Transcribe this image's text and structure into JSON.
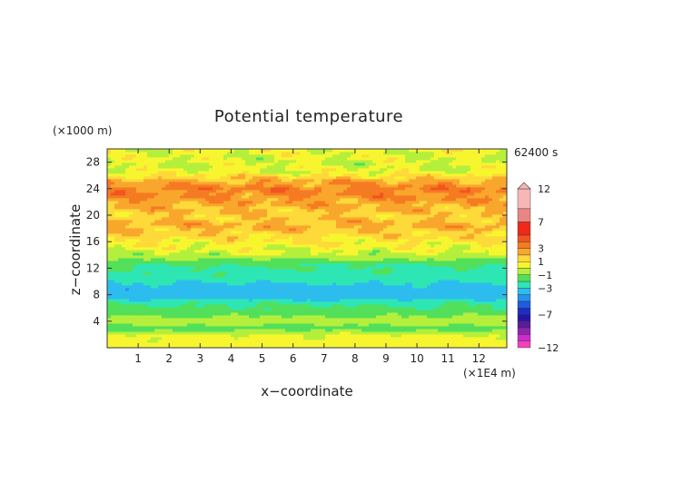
{
  "chart_data": {
    "type": "heatmap",
    "title": "Potential temperature",
    "time_label": "62400 s",
    "xlabel": "x−coordinate",
    "ylabel": "z−coordinate",
    "x_unit": "(×1E4 m)",
    "y_unit": "(×1000 m)",
    "xlim": [
      0,
      12.9
    ],
    "ylim": [
      0,
      30
    ],
    "x_ticks": [
      "1",
      "2",
      "3",
      "4",
      "5",
      "6",
      "7",
      "8",
      "9",
      "10",
      "11",
      "12"
    ],
    "y_ticks": [
      "4",
      "8",
      "12",
      "16",
      "20",
      "24",
      "28"
    ],
    "colorbar": {
      "range": [
        -12,
        12
      ],
      "tick_labels": [
        "12",
        "7",
        "3",
        "1",
        "−1",
        "−3",
        "−7",
        "−12"
      ],
      "levels": [
        {
          "min": 9,
          "max": 12,
          "color": "#f7b7b7"
        },
        {
          "min": 7,
          "max": 9,
          "color": "#e98585"
        },
        {
          "min": 5,
          "max": 7,
          "color": "#ee2a1a"
        },
        {
          "min": 4,
          "max": 5,
          "color": "#f2551f"
        },
        {
          "min": 3,
          "max": 4,
          "color": "#f57b22"
        },
        {
          "min": 2,
          "max": 3,
          "color": "#f9a72c"
        },
        {
          "min": 1,
          "max": 2,
          "color": "#fdd93a"
        },
        {
          "min": 0,
          "max": 1,
          "color": "#f7f62e"
        },
        {
          "min": -1,
          "max": 0,
          "color": "#b4ef3c"
        },
        {
          "min": -2,
          "max": -1,
          "color": "#52e05a"
        },
        {
          "min": -3,
          "max": -2,
          "color": "#2ee6b4"
        },
        {
          "min": -4,
          "max": -3,
          "color": "#2cbdee"
        },
        {
          "min": -5,
          "max": -4,
          "color": "#2392ee"
        },
        {
          "min": -6,
          "max": -5,
          "color": "#1f5ce0"
        },
        {
          "min": -7,
          "max": -6,
          "color": "#1c2fc4"
        },
        {
          "min": -8,
          "max": -7,
          "color": "#2614a8"
        },
        {
          "min": -9,
          "max": -8,
          "color": "#5a1c9c"
        },
        {
          "min": -10,
          "max": -9,
          "color": "#8f24b2"
        },
        {
          "min": -11,
          "max": -10,
          "color": "#cc2ccc"
        },
        {
          "min": -12,
          "max": -11,
          "color": "#f53fb8"
        }
      ]
    },
    "field_profile_by_height": [
      {
        "z": 0,
        "value": 0.6
      },
      {
        "z": 2,
        "value": 0.1
      },
      {
        "z": 3,
        "value": -1.6
      },
      {
        "z": 4,
        "value": -0.3
      },
      {
        "z": 5,
        "value": -1.2
      },
      {
        "z": 6,
        "value": -1.8
      },
      {
        "z": 6.8,
        "value": -2.2
      },
      {
        "z": 7.5,
        "value": -3.4
      },
      {
        "z": 8.8,
        "value": -3.6
      },
      {
        "z": 9.8,
        "value": -3.0
      },
      {
        "z": 11,
        "value": -2.3
      },
      {
        "z": 12.5,
        "value": -2.0
      },
      {
        "z": 14,
        "value": -0.3
      },
      {
        "z": 15.5,
        "value": 0.6
      },
      {
        "z": 17,
        "value": 1.4
      },
      {
        "z": 18.5,
        "value": 2.3
      },
      {
        "z": 20,
        "value": 1.6
      },
      {
        "z": 21.5,
        "value": 2.3
      },
      {
        "z": 23,
        "value": 3.0
      },
      {
        "z": 24,
        "value": 3.4
      },
      {
        "z": 25.3,
        "value": 2.2
      },
      {
        "z": 26.5,
        "value": 0.3
      },
      {
        "z": 28,
        "value": 0.0
      },
      {
        "z": 30,
        "value": 0.4
      }
    ]
  }
}
